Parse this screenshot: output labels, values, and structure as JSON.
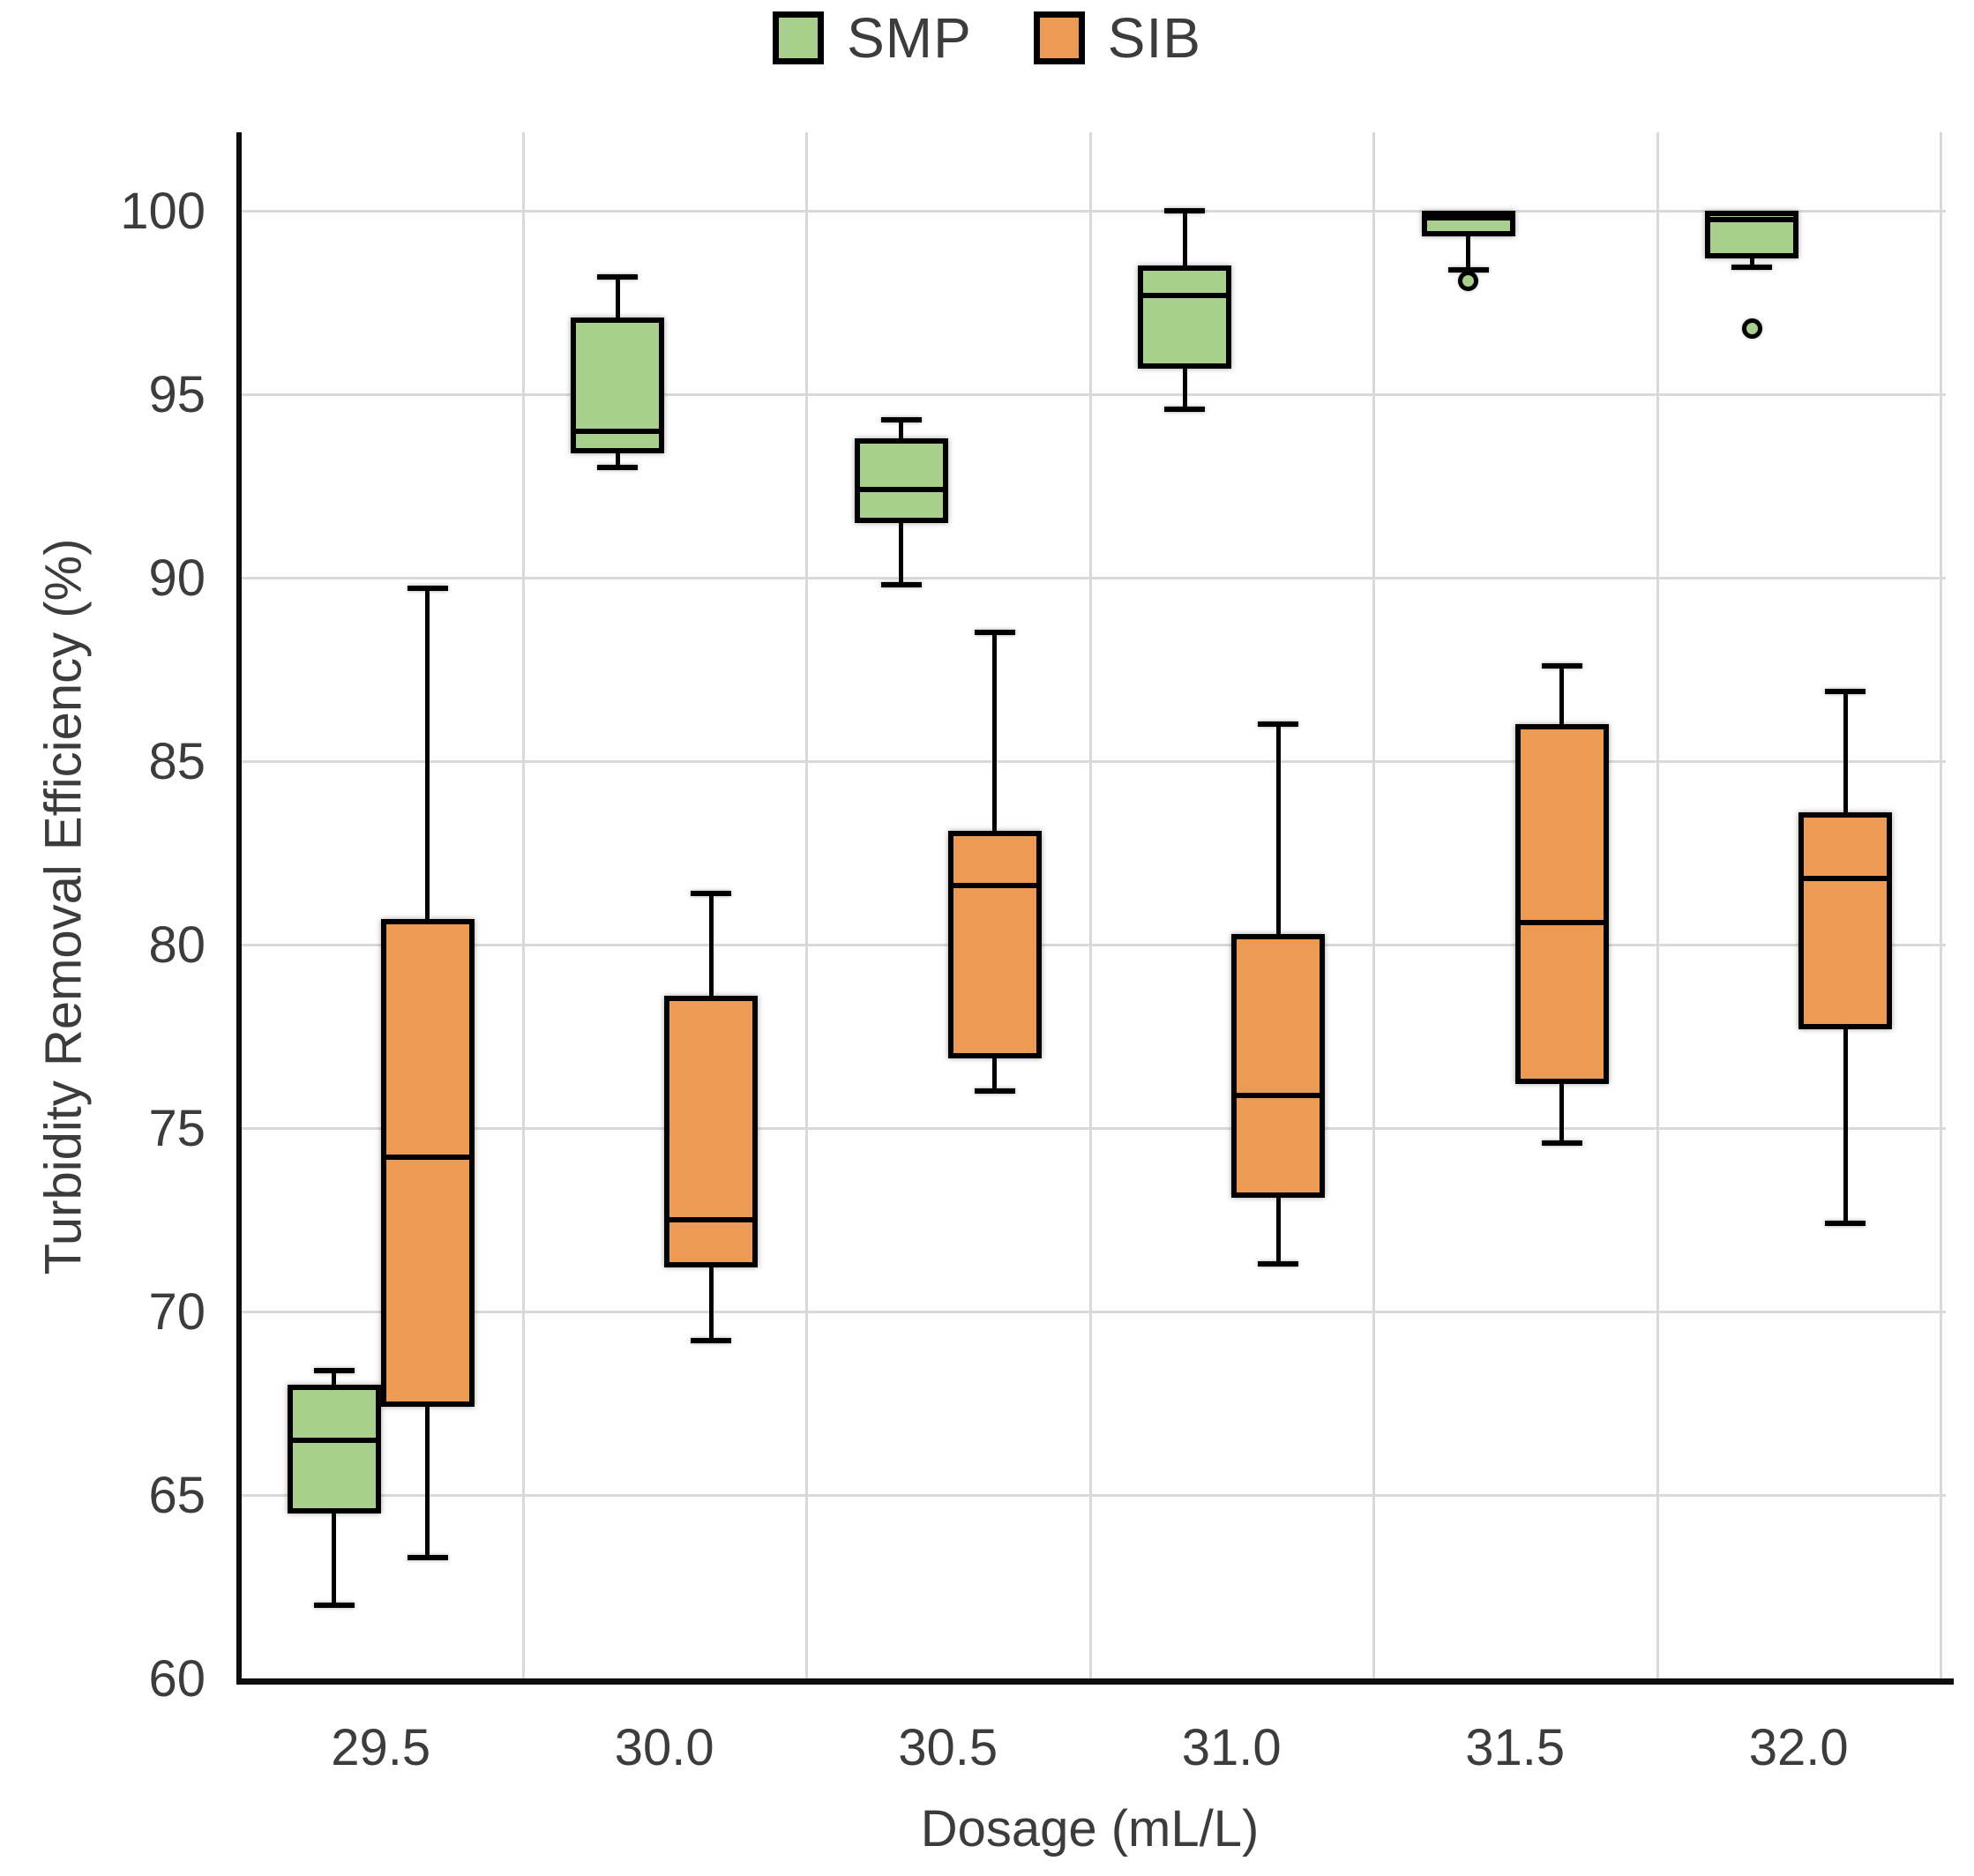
{
  "chart_data": {
    "type": "boxplot",
    "title": "",
    "xlabel": "Dosage (mL/L)",
    "ylabel": "Turbidity Removal Efficiency (%)",
    "categories": [
      "29.5",
      "30.0",
      "30.5",
      "31.0",
      "31.5",
      "32.0"
    ],
    "y_ticks": [
      100,
      95,
      90,
      85,
      80,
      75,
      70,
      65,
      60
    ],
    "ylim": [
      60,
      102.1
    ],
    "grid": true,
    "legend_position": "top-center",
    "colors": {
      "smp_fill": "#a9cf8c",
      "sib_fill": "#ed9b54",
      "box_edge": "#000000",
      "gridline": "#d9d9d9",
      "axis": "#0d0d0d",
      "text": "#3c3c3c"
    },
    "series": [
      {
        "name": "SMP",
        "fill_color": "#a9cf8c",
        "boxes": [
          {
            "category": "29.5",
            "whislo": 62.0,
            "q1": 64.5,
            "med": 66.5,
            "q3": 68.0,
            "whishi": 68.4,
            "outliers": []
          },
          {
            "category": "30.0",
            "whislo": 93.0,
            "q1": 93.4,
            "med": 94.0,
            "q3": 97.1,
            "whishi": 98.2,
            "outliers": []
          },
          {
            "category": "30.5",
            "whislo": 89.8,
            "q1": 91.5,
            "med": 92.4,
            "q3": 93.8,
            "whishi": 94.3,
            "outliers": []
          },
          {
            "category": "31.0",
            "whislo": 94.6,
            "q1": 95.7,
            "med": 97.7,
            "q3": 98.5,
            "whishi": 100.0,
            "outliers": []
          },
          {
            "category": "31.5",
            "whislo": 98.4,
            "q1": 99.3,
            "med": 99.8,
            "q3": 100.0,
            "whishi": 100.0,
            "outliers": [
              98.1
            ]
          },
          {
            "category": "32.0",
            "whislo": 98.45,
            "q1": 98.7,
            "med": 99.75,
            "q3": 100.0,
            "whishi": 100.0,
            "outliers": [
              96.8
            ]
          }
        ]
      },
      {
        "name": "SIB",
        "fill_color": "#ed9b54",
        "boxes": [
          {
            "category": "29.5",
            "whislo": 63.3,
            "q1": 67.4,
            "med": 74.2,
            "q3": 80.7,
            "whishi": 89.7,
            "outliers": []
          },
          {
            "category": "30.0",
            "whislo": 69.2,
            "q1": 71.2,
            "med": 72.5,
            "q3": 78.6,
            "whishi": 81.4,
            "outliers": []
          },
          {
            "category": "30.5",
            "whislo": 76.0,
            "q1": 76.9,
            "med": 81.6,
            "q3": 83.1,
            "whishi": 88.5,
            "outliers": []
          },
          {
            "category": "31.0",
            "whislo": 71.3,
            "q1": 73.1,
            "med": 75.9,
            "q3": 80.3,
            "whishi": 86.0,
            "outliers": []
          },
          {
            "category": "31.5",
            "whislo": 74.6,
            "q1": 76.2,
            "med": 80.6,
            "q3": 86.0,
            "whishi": 87.6,
            "outliers": []
          },
          {
            "category": "32.0",
            "whislo": 72.4,
            "q1": 77.7,
            "med": 81.8,
            "q3": 83.6,
            "whishi": 86.9,
            "outliers": []
          }
        ]
      }
    ]
  }
}
